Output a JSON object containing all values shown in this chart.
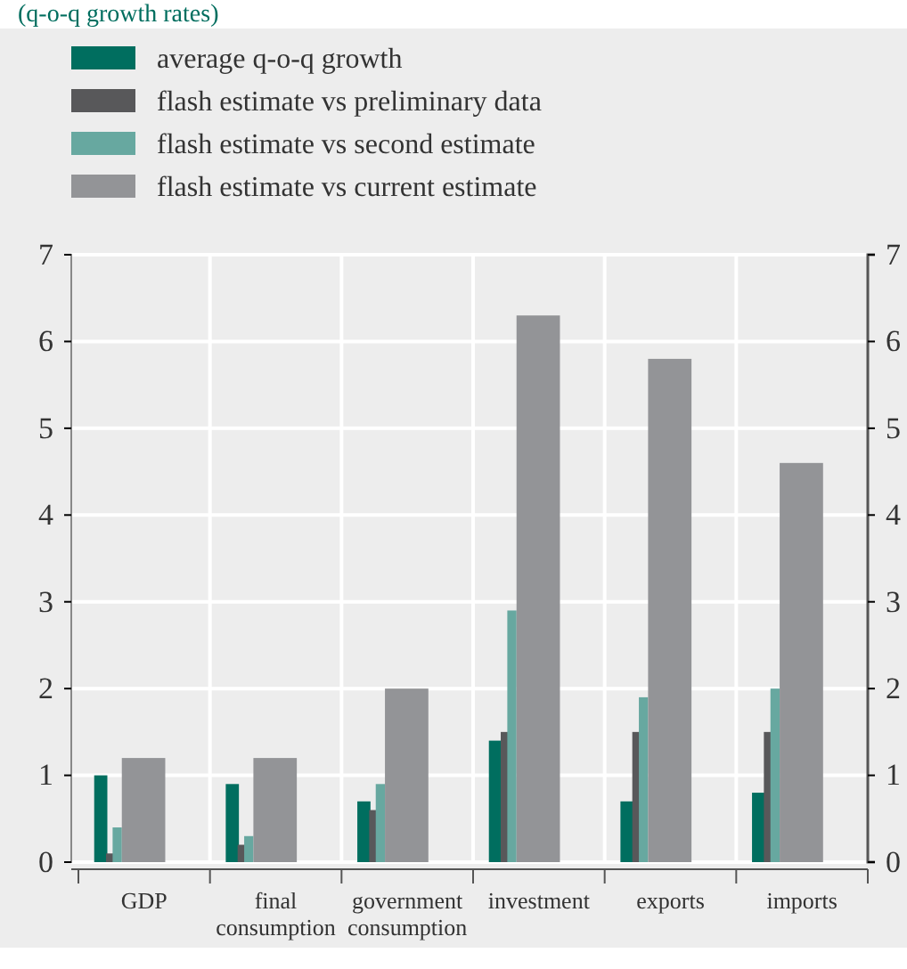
{
  "chart_data": {
    "type": "bar",
    "subtitle": "(q-o-q growth rates)",
    "categories": [
      "GDP",
      "final consumption",
      "government consumption",
      "investment",
      "exports",
      "imports"
    ],
    "series": [
      {
        "name": "average q-o-q growth",
        "color": "#006e5f",
        "values": [
          1.0,
          0.9,
          0.7,
          1.4,
          0.7,
          0.8
        ]
      },
      {
        "name": "flash estimate vs preliminary data",
        "color": "#58585a",
        "values": [
          0.1,
          0.2,
          0.6,
          1.5,
          1.5,
          1.5
        ]
      },
      {
        "name": "flash estimate vs second estimate",
        "color": "#67a8a0",
        "values": [
          0.4,
          0.3,
          0.9,
          2.9,
          1.9,
          2.0
        ]
      },
      {
        "name": "flash estimate vs current estimate",
        "color": "#939497",
        "values": [
          1.2,
          1.2,
          2.0,
          6.3,
          5.8,
          4.6
        ]
      }
    ],
    "ylim": [
      0,
      7
    ],
    "yticks": [
      0,
      1,
      2,
      3,
      4,
      5,
      6,
      7
    ],
    "y2lim": [
      0,
      7
    ],
    "y2ticks": [
      0,
      1,
      2,
      3,
      4,
      5,
      6,
      7
    ],
    "grid": true,
    "legend": "top"
  }
}
